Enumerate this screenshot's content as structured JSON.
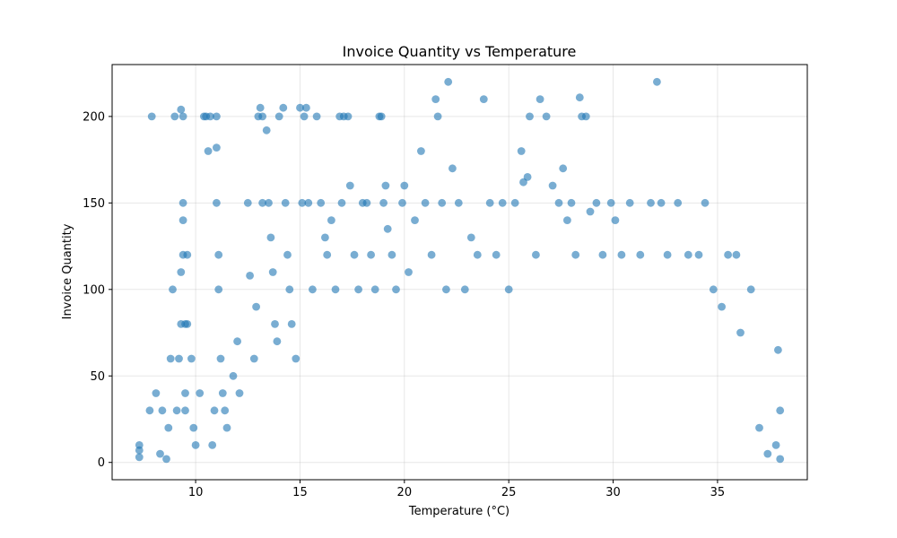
{
  "chart_data": {
    "type": "scatter",
    "title": "Invoice Quantity vs Temperature",
    "xlabel": "Temperature (°C)",
    "ylabel": "Invoice Quantity",
    "xlim": [
      6.0,
      39.3
    ],
    "ylim": [
      -10,
      230
    ],
    "xticks": [
      10,
      15,
      20,
      25,
      30,
      35
    ],
    "yticks": [
      0,
      50,
      100,
      150,
      200
    ],
    "grid": true,
    "marker_color": "#1f77b4",
    "marker_alpha": 0.6,
    "series": [
      {
        "points": [
          [
            7.3,
            3
          ],
          [
            7.3,
            7
          ],
          [
            7.3,
            10
          ],
          [
            7.9,
            200
          ],
          [
            7.8,
            30
          ],
          [
            8.1,
            40
          ],
          [
            8.3,
            5
          ],
          [
            8.4,
            30
          ],
          [
            8.6,
            2
          ],
          [
            8.7,
            20
          ],
          [
            8.8,
            60
          ],
          [
            8.9,
            100
          ],
          [
            9.0,
            200
          ],
          [
            9.1,
            30
          ],
          [
            9.2,
            60
          ],
          [
            9.3,
            80
          ],
          [
            9.3,
            110
          ],
          [
            9.4,
            120
          ],
          [
            9.4,
            150
          ],
          [
            9.4,
            140
          ],
          [
            9.5,
            80
          ],
          [
            9.5,
            40
          ],
          [
            9.5,
            30
          ],
          [
            9.6,
            120
          ],
          [
            9.6,
            80
          ],
          [
            9.3,
            204
          ],
          [
            9.4,
            200
          ],
          [
            9.8,
            60
          ],
          [
            9.9,
            20
          ],
          [
            10.0,
            10
          ],
          [
            10.2,
            40
          ],
          [
            10.4,
            200
          ],
          [
            10.5,
            200
          ],
          [
            10.6,
            180
          ],
          [
            10.7,
            200
          ],
          [
            10.8,
            10
          ],
          [
            10.9,
            30
          ],
          [
            11.0,
            200
          ],
          [
            11.0,
            182
          ],
          [
            11.0,
            150
          ],
          [
            11.1,
            100
          ],
          [
            11.1,
            120
          ],
          [
            11.2,
            60
          ],
          [
            11.3,
            40
          ],
          [
            11.4,
            30
          ],
          [
            11.5,
            20
          ],
          [
            11.8,
            50
          ],
          [
            12.0,
            70
          ],
          [
            12.1,
            40
          ],
          [
            12.5,
            150
          ],
          [
            12.6,
            108
          ],
          [
            12.8,
            60
          ],
          [
            12.9,
            90
          ],
          [
            13.0,
            200
          ],
          [
            13.1,
            205
          ],
          [
            13.2,
            200
          ],
          [
            13.2,
            150
          ],
          [
            13.4,
            192
          ],
          [
            13.5,
            150
          ],
          [
            13.6,
            130
          ],
          [
            13.7,
            110
          ],
          [
            13.8,
            80
          ],
          [
            13.9,
            70
          ],
          [
            14.0,
            200
          ],
          [
            14.2,
            205
          ],
          [
            14.3,
            150
          ],
          [
            14.4,
            120
          ],
          [
            14.5,
            100
          ],
          [
            14.6,
            80
          ],
          [
            14.8,
            60
          ],
          [
            15.0,
            205
          ],
          [
            15.1,
            150
          ],
          [
            15.2,
            200
          ],
          [
            15.3,
            205
          ],
          [
            15.4,
            150
          ],
          [
            15.6,
            100
          ],
          [
            15.8,
            200
          ],
          [
            16.0,
            150
          ],
          [
            16.2,
            130
          ],
          [
            16.3,
            120
          ],
          [
            16.5,
            140
          ],
          [
            16.7,
            100
          ],
          [
            16.9,
            200
          ],
          [
            17.0,
            150
          ],
          [
            17.1,
            200
          ],
          [
            17.3,
            200
          ],
          [
            17.4,
            160
          ],
          [
            17.6,
            120
          ],
          [
            17.8,
            100
          ],
          [
            18.0,
            150
          ],
          [
            18.2,
            150
          ],
          [
            18.4,
            120
          ],
          [
            18.6,
            100
          ],
          [
            18.8,
            200
          ],
          [
            18.9,
            200
          ],
          [
            19.0,
            150
          ],
          [
            19.1,
            160
          ],
          [
            19.2,
            135
          ],
          [
            19.4,
            120
          ],
          [
            19.6,
            100
          ],
          [
            19.9,
            150
          ],
          [
            20.0,
            160
          ],
          [
            20.2,
            110
          ],
          [
            20.5,
            140
          ],
          [
            20.8,
            180
          ],
          [
            21.0,
            150
          ],
          [
            21.3,
            120
          ],
          [
            21.5,
            210
          ],
          [
            21.6,
            200
          ],
          [
            21.8,
            150
          ],
          [
            22.0,
            100
          ],
          [
            22.1,
            220
          ],
          [
            22.3,
            170
          ],
          [
            22.6,
            150
          ],
          [
            22.9,
            100
          ],
          [
            23.2,
            130
          ],
          [
            23.5,
            120
          ],
          [
            23.8,
            210
          ],
          [
            24.1,
            150
          ],
          [
            24.4,
            120
          ],
          [
            24.7,
            150
          ],
          [
            25.0,
            100
          ],
          [
            25.3,
            150
          ],
          [
            25.6,
            180
          ],
          [
            25.7,
            162
          ],
          [
            25.9,
            165
          ],
          [
            26.0,
            200
          ],
          [
            26.3,
            120
          ],
          [
            26.5,
            210
          ],
          [
            26.8,
            200
          ],
          [
            27.1,
            160
          ],
          [
            27.4,
            150
          ],
          [
            27.6,
            170
          ],
          [
            27.8,
            140
          ],
          [
            28.0,
            150
          ],
          [
            28.2,
            120
          ],
          [
            28.4,
            211
          ],
          [
            28.5,
            200
          ],
          [
            28.7,
            200
          ],
          [
            28.9,
            145
          ],
          [
            29.2,
            150
          ],
          [
            29.5,
            120
          ],
          [
            29.9,
            150
          ],
          [
            30.1,
            140
          ],
          [
            30.4,
            120
          ],
          [
            30.8,
            150
          ],
          [
            31.3,
            120
          ],
          [
            31.8,
            150
          ],
          [
            32.1,
            220
          ],
          [
            32.3,
            150
          ],
          [
            32.6,
            120
          ],
          [
            33.1,
            150
          ],
          [
            33.6,
            120
          ],
          [
            34.1,
            120
          ],
          [
            34.4,
            150
          ],
          [
            34.8,
            100
          ],
          [
            35.2,
            90
          ],
          [
            35.5,
            120
          ],
          [
            35.9,
            120
          ],
          [
            36.1,
            75
          ],
          [
            36.6,
            100
          ],
          [
            37.0,
            20
          ],
          [
            37.4,
            5
          ],
          [
            37.8,
            10
          ],
          [
            37.9,
            65
          ],
          [
            38.0,
            30
          ],
          [
            38.0,
            2
          ]
        ]
      }
    ]
  }
}
